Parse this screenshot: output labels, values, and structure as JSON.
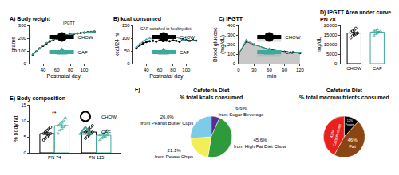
{
  "chart_data": [
    {
      "type": "line",
      "panel_label": "A)",
      "title": "Body weight",
      "x_label": "Postnatal day",
      "y_label": "grams",
      "x": [
        25,
        30,
        35,
        40,
        45,
        50,
        55,
        60,
        65,
        70,
        75,
        80,
        85,
        90,
        95,
        100,
        105,
        110,
        115
      ],
      "series": [
        {
          "name": "CHOW",
          "color": "#000000",
          "marker": "circle",
          "values": [
            70,
            95,
            120,
            140,
            160,
            175,
            188,
            198,
            207,
            215,
            222,
            228,
            233,
            237,
            241,
            244,
            247,
            249,
            251
          ]
        },
        {
          "name": "CAF",
          "color": "#3ba99c",
          "marker": "triangle-up",
          "values": [
            70,
            96,
            122,
            143,
            163,
            178,
            191,
            201,
            210,
            218,
            224,
            229,
            234,
            238,
            241,
            244,
            246,
            248,
            250
          ]
        }
      ],
      "xlim": [
        20,
        120
      ],
      "xticks": [
        40,
        60,
        80,
        100
      ],
      "ylim": [
        0,
        300
      ],
      "yticks": [
        0,
        100,
        200,
        300
      ],
      "grid": false,
      "legend": "lower right",
      "annotations": [
        {
          "text": "IPGTT",
          "x": 78,
          "y": 225,
          "marker": "arrow"
        }
      ]
    },
    {
      "type": "line",
      "panel_label": "B)",
      "title": "kcal consumed",
      "x_label": "Postnatal day",
      "y_label": "kcal/24 hr",
      "x": [
        25,
        30,
        35,
        40,
        45,
        50,
        55,
        60,
        65,
        70,
        75,
        80,
        85,
        90,
        95,
        100,
        105,
        110,
        115
      ],
      "series": [
        {
          "name": "CHOW",
          "color": "#000000",
          "marker": "circle",
          "values": [
            60,
            72,
            80,
            85,
            88,
            90,
            87,
            92,
            89,
            91,
            88,
            93,
            90,
            86,
            95,
            92,
            90,
            93,
            91
          ]
        },
        {
          "name": "CAF",
          "color": "#3ba99c",
          "marker": "triangle-up",
          "values": [
            65,
            78,
            88,
            95,
            100,
            98,
            102,
            96,
            104,
            99,
            101,
            97,
            103,
            100,
            92,
            90,
            88,
            91,
            90
          ]
        }
      ],
      "xlim": [
        20,
        120
      ],
      "xticks": [
        40,
        60,
        80,
        100
      ],
      "ylim": [
        0,
        150
      ],
      "yticks": [
        0,
        50,
        100,
        150
      ],
      "grid": false,
      "legend": "lower right",
      "annotations": [
        {
          "text": "CAF switched to healthy diet",
          "x": 70,
          "y": 138
        }
      ]
    },
    {
      "type": "area",
      "panel_label": "C)",
      "title": "IPGTT",
      "x_label": "min",
      "y_label": "Blood glucose\n(mg/dL)",
      "x": [
        0,
        15,
        30,
        60,
        90,
        120
      ],
      "series": [
        {
          "name": "CHOW",
          "color": "#000000",
          "marker": "circle",
          "values": [
            100,
            230,
            200,
            150,
            125,
            110
          ]
        },
        {
          "name": "CAF",
          "color": "#3ba99c",
          "marker": "triangle-up",
          "values": [
            105,
            250,
            205,
            145,
            120,
            112
          ]
        }
      ],
      "xlim": [
        0,
        130
      ],
      "xticks": [
        0,
        30,
        60,
        90,
        120
      ],
      "ylim": [
        0,
        400
      ],
      "yticks": [
        0,
        100,
        200,
        300,
        400
      ],
      "grid": false,
      "legend": "upper right"
    },
    {
      "type": "bar",
      "panel_label": "D)",
      "title": "IPGTT Area under curve\nPN 78",
      "y_label": "mg/dL",
      "categories": [
        "CHOW",
        "CAF"
      ],
      "series": [
        {
          "name": "CHOW",
          "color": "#000000",
          "marker": "circle-open",
          "values": [
            16000,
            null
          ],
          "errors": [
            500,
            null
          ],
          "points": [
            [
              13500,
              14500,
              15000,
              15500,
              16000,
              16500,
              17000,
              17500,
              18500,
              16000
            ],
            null
          ]
        },
        {
          "name": "CAF",
          "color": "#3ba99c",
          "marker": "triangle-up-open",
          "values": [
            null,
            16500
          ],
          "errors": [
            null,
            400
          ],
          "points": [
            null,
            [
              14500,
              15500,
              16000,
              16500,
              17000,
              17000,
              17500,
              18000,
              16500
            ]
          ]
        }
      ],
      "ylim": [
        0,
        20000
      ],
      "yticks": [
        0,
        5000,
        10000,
        15000,
        20000
      ],
      "grid": false
    },
    {
      "type": "bar",
      "panel_label": "E)",
      "title": "Body composition",
      "y_label": "% body fat",
      "categories": [
        "PN 74",
        "PN 115"
      ],
      "series": [
        {
          "name": "CHOW",
          "color": "#000000",
          "marker": "circle-open",
          "values": [
            6,
            6.5
          ],
          "errors": [
            0.4,
            0.4
          ],
          "points": [
            [
              4,
              4.5,
              5,
              5.5,
              6,
              6,
              6.5,
              7,
              7.5,
              8
            ],
            [
              4.5,
              5,
              5.5,
              6,
              6.5,
              6.5,
              7,
              7.5,
              8,
              8.5
            ]
          ]
        },
        {
          "name": "CAF",
          "color": "#3ba99c",
          "marker": "triangle-up-open",
          "values": [
            8.5,
            5.5
          ],
          "errors": [
            0.5,
            0.3
          ],
          "points": [
            [
              6,
              7,
              7.5,
              8,
              8.5,
              8.5,
              9,
              9.5,
              10,
              11
            ],
            [
              4,
              4.5,
              5,
              5,
              5.5,
              5.5,
              6,
              6,
              6.5,
              7
            ]
          ]
        }
      ],
      "ylim": [
        0,
        15
      ],
      "yticks": [
        0,
        5,
        10,
        15
      ],
      "grid": false,
      "legend": "upper right",
      "annotations": [
        {
          "text": "**",
          "category": "PN 74",
          "y": 12.5
        }
      ]
    },
    {
      "type": "pie",
      "panel_label": "F)",
      "title": "Cafeteria Diet\n% total kcals consumed",
      "categories": [
        "from Sugar Beverage",
        "from High Fat Diet Chow",
        "from Potato Chips",
        "from Peanut Butter Cups"
      ],
      "values": [
        6.6,
        45.6,
        21.1,
        26.0
      ],
      "value_labels": [
        "6.6%",
        "45.6%",
        "21.1%",
        "26.0%"
      ],
      "colors": [
        "#5b2c8f",
        "#2e9a3c",
        "#f2ee5a",
        "#7ecbe9"
      ],
      "data_labels": true
    },
    {
      "type": "pie",
      "title": "Cafeteria Diet\n% total macronutrients consumed",
      "categories": [
        "Protein",
        "Fat",
        "Carbohydrate"
      ],
      "values": [
        12,
        46,
        42
      ],
      "value_labels": [
        "12%",
        "46%",
        "42%"
      ],
      "colors": [
        "#000000",
        "#8b4513",
        "#e8211d"
      ],
      "data_labels": true
    }
  ]
}
